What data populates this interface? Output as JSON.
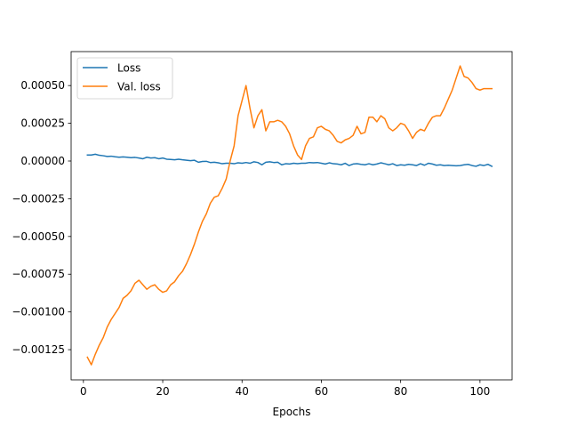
{
  "chart_data": {
    "type": "line",
    "title": "",
    "xlabel": "Epochs",
    "ylabel": "",
    "xlim": [
      -3.1,
      108.1
    ],
    "ylim": [
      -0.00145,
      0.000725
    ],
    "x_ticks": [
      0,
      20,
      40,
      60,
      80,
      100
    ],
    "x_tick_labels": [
      "0",
      "20",
      "40",
      "60",
      "80",
      "100"
    ],
    "y_ticks": [
      -0.00125,
      -0.001,
      -0.00075,
      -0.0005,
      -0.00025,
      0,
      0.00025,
      0.0005
    ],
    "y_tick_labels": [
      "−0.00125",
      "−0.00100",
      "−0.00075",
      "−0.00050",
      "−0.00025",
      "0.00000",
      "0.00025",
      "0.00050"
    ],
    "grid": false,
    "legend_position": "upper-left",
    "series": [
      {
        "name": "Loss",
        "color": "#1f77b4",
        "x": [
          1,
          2,
          3,
          4,
          5,
          6,
          7,
          8,
          9,
          10,
          11,
          12,
          13,
          14,
          15,
          16,
          17,
          18,
          19,
          20,
          21,
          22,
          23,
          24,
          25,
          26,
          27,
          28,
          29,
          30,
          31,
          32,
          33,
          34,
          35,
          36,
          37,
          38,
          39,
          40,
          41,
          42,
          43,
          44,
          45,
          46,
          47,
          48,
          49,
          50,
          51,
          52,
          53,
          54,
          55,
          56,
          57,
          58,
          59,
          60,
          61,
          62,
          63,
          64,
          65,
          66,
          67,
          68,
          69,
          70,
          71,
          72,
          73,
          74,
          75,
          76,
          77,
          78,
          79,
          80,
          81,
          82,
          83,
          84,
          85,
          86,
          87,
          88,
          89,
          90,
          91,
          92,
          93,
          94,
          95,
          96,
          97,
          98,
          99,
          100,
          101,
          102,
          103
        ],
        "values": [
          4e-05,
          4e-05,
          4.5e-05,
          3.8e-05,
          3.5e-05,
          3e-05,
          3.2e-05,
          2.8e-05,
          2.5e-05,
          2.7e-05,
          2.5e-05,
          2.2e-05,
          2.4e-05,
          2e-05,
          1.5e-05,
          2.5e-05,
          2e-05,
          2.2e-05,
          1.5e-05,
          2e-05,
          1.2e-05,
          1e-05,
          8e-06,
          1.2e-05,
          8e-06,
          5e-06,
          2e-06,
          5e-06,
          -8e-06,
          -3e-06,
          -2e-06,
          -1e-05,
          -8e-06,
          -1.2e-05,
          -1.8e-05,
          -1.5e-05,
          -1.5e-05,
          -1.8e-05,
          -1.2e-05,
          -1.5e-05,
          -1e-05,
          -1.5e-05,
          -5e-06,
          -1e-05,
          -2.5e-05,
          -8e-06,
          -5e-06,
          -1e-05,
          -8e-06,
          -2.5e-05,
          -1.8e-05,
          -2e-05,
          -1.5e-05,
          -1.8e-05,
          -1.5e-05,
          -1.5e-05,
          -1e-05,
          -1.2e-05,
          -1e-05,
          -1.5e-05,
          -2e-05,
          -1.2e-05,
          -1.8e-05,
          -2e-05,
          -2.5e-05,
          -1.5e-05,
          -3e-05,
          -2e-05,
          -1.8e-05,
          -2.2e-05,
          -2.5e-05,
          -1.8e-05,
          -2.5e-05,
          -2e-05,
          -1.2e-05,
          -1.8e-05,
          -2.5e-05,
          -1.8e-05,
          -3e-05,
          -2.5e-05,
          -2.8e-05,
          -2.2e-05,
          -2.5e-05,
          -3e-05,
          -1.8e-05,
          -2.8e-05,
          -1.5e-05,
          -2e-05,
          -2.8e-05,
          -2.5e-05,
          -3e-05,
          -2.8e-05,
          -3e-05,
          -3.2e-05,
          -3e-05,
          -2.5e-05,
          -2.2e-05,
          -3e-05,
          -3.5e-05,
          -2.5e-05,
          -3e-05,
          -2.2e-05,
          -3.5e-05
        ]
      },
      {
        "name": "Val. loss",
        "color": "#ff7f0e",
        "x": [
          1,
          2,
          3,
          4,
          5,
          6,
          7,
          8,
          9,
          10,
          11,
          12,
          13,
          14,
          15,
          16,
          17,
          18,
          19,
          20,
          21,
          22,
          23,
          24,
          25,
          26,
          27,
          28,
          29,
          30,
          31,
          32,
          33,
          34,
          35,
          36,
          37,
          38,
          39,
          40,
          41,
          42,
          43,
          44,
          45,
          46,
          47,
          48,
          49,
          50,
          51,
          52,
          53,
          54,
          55,
          56,
          57,
          58,
          59,
          60,
          61,
          62,
          63,
          64,
          65,
          66,
          67,
          68,
          69,
          70,
          71,
          72,
          73,
          74,
          75,
          76,
          77,
          78,
          79,
          80,
          81,
          82,
          83,
          84,
          85,
          86,
          87,
          88,
          89,
          90,
          91,
          92,
          93,
          94,
          95,
          96,
          97,
          98,
          99,
          100,
          101,
          102,
          103
        ],
        "values": [
          -0.0013,
          -0.00135,
          -0.00128,
          -0.00122,
          -0.00117,
          -0.0011,
          -0.00105,
          -0.00101,
          -0.00097,
          -0.00091,
          -0.00089,
          -0.00086,
          -0.00081,
          -0.00079,
          -0.00082,
          -0.00085,
          -0.00083,
          -0.00082,
          -0.00085,
          -0.00087,
          -0.00086,
          -0.00082,
          -0.0008,
          -0.00076,
          -0.00073,
          -0.00068,
          -0.00062,
          -0.00055,
          -0.00047,
          -0.0004,
          -0.00035,
          -0.00028,
          -0.00024,
          -0.00023,
          -0.00018,
          -0.00012,
          0.0,
          0.0001,
          0.0003,
          0.0004,
          0.0005,
          0.00035,
          0.00022,
          0.0003,
          0.00034,
          0.0002,
          0.00026,
          0.00026,
          0.00027,
          0.00026,
          0.00023,
          0.00018,
          0.0001,
          4e-05,
          1e-05,
          0.0001,
          0.00015,
          0.00016,
          0.00022,
          0.00023,
          0.00021,
          0.0002,
          0.00017,
          0.00013,
          0.00012,
          0.00014,
          0.00015,
          0.00017,
          0.00023,
          0.00018,
          0.00019,
          0.00029,
          0.00029,
          0.00026,
          0.0003,
          0.00028,
          0.00022,
          0.0002,
          0.00022,
          0.00025,
          0.00024,
          0.0002,
          0.00015,
          0.00019,
          0.00021,
          0.0002,
          0.00025,
          0.00029,
          0.0003,
          0.0003,
          0.00035,
          0.00041,
          0.00047,
          0.00055,
          0.00063,
          0.00056,
          0.00055,
          0.00052,
          0.00048,
          0.00047,
          0.00048,
          0.00048,
          0.00048
        ]
      }
    ]
  }
}
